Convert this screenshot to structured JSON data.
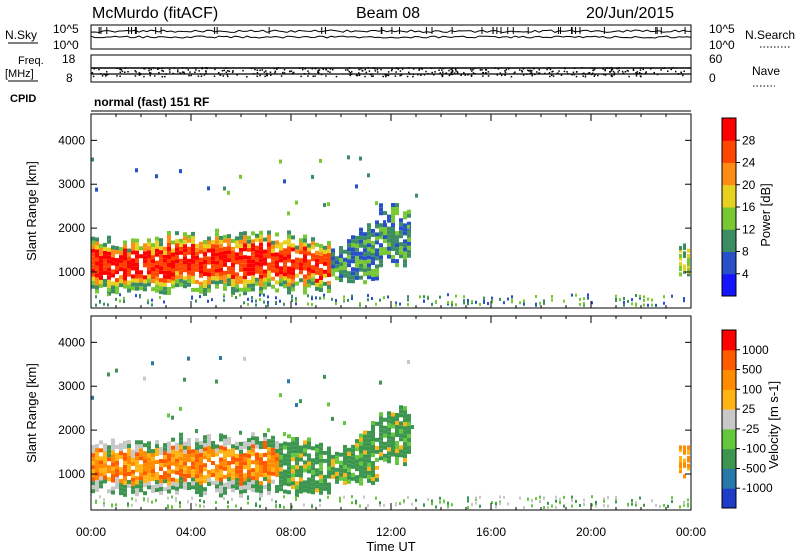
{
  "header": {
    "station": "McMurdo (fitACF)",
    "beam": "Beam 08",
    "date": "20/Jun/2015"
  },
  "panels": {
    "nsky_label": "N.Sky",
    "nsky_top": "10^5",
    "nsky_bottom": "10^0",
    "nsearch_label": "N.Search",
    "nsearch_top": "10^5",
    "nsearch_bottom": "10^0",
    "freq_label": "Freq.",
    "freq_unit": "[MHz]",
    "freq_top": "18",
    "freq_bottom": "8",
    "nave_label": "Nave",
    "nave_top": "60",
    "nave_bottom": "0",
    "cpid_label": "CPID",
    "cpid_value": "normal (fast) 151 RF"
  },
  "chart_data": [
    {
      "type": "heatmap",
      "title": "",
      "xlabel": "",
      "ylabel": "Slant Range [km]",
      "xlim": [
        0,
        24
      ],
      "ylim": [
        180,
        4600
      ],
      "x_ticks": [
        "00:00",
        "04:00",
        "08:00",
        "12:00",
        "16:00",
        "20:00",
        "00:00"
      ],
      "y_ticks": [
        "1000",
        "2000",
        "3000",
        "4000"
      ],
      "colorbar_label": "Power [dB]",
      "colorbar_ticks": [
        "4",
        "8",
        "12",
        "16",
        "20",
        "24",
        "28"
      ],
      "colorbar_range": [
        0,
        32
      ],
      "colors": [
        "#1414ff",
        "#2850c8",
        "#3c8c64",
        "#78c832",
        "#e6d21e",
        "#ff8c14",
        "#ff4600",
        "#ff0000"
      ]
    },
    {
      "type": "heatmap",
      "title": "",
      "xlabel": "Time UT",
      "ylabel": "Slant Range [km]",
      "xlim": [
        0,
        24
      ],
      "ylim": [
        180,
        4600
      ],
      "x_ticks": [
        "00:00",
        "04:00",
        "08:00",
        "12:00",
        "16:00",
        "20:00",
        "00:00"
      ],
      "y_ticks": [
        "1000",
        "2000",
        "3000",
        "4000"
      ],
      "colorbar_label": "Velocity [m s-1]",
      "colorbar_ticks": [
        "1000",
        "500",
        "100",
        "25",
        "-25",
        "-100",
        "-500",
        "-1000"
      ],
      "colors": [
        "#1e3cc8",
        "#2878aa",
        "#3c9650",
        "#64c83c",
        "#c8c8c8",
        "#ffb414",
        "#ff8c00",
        "#ff5a00",
        "#ff0000"
      ]
    }
  ]
}
